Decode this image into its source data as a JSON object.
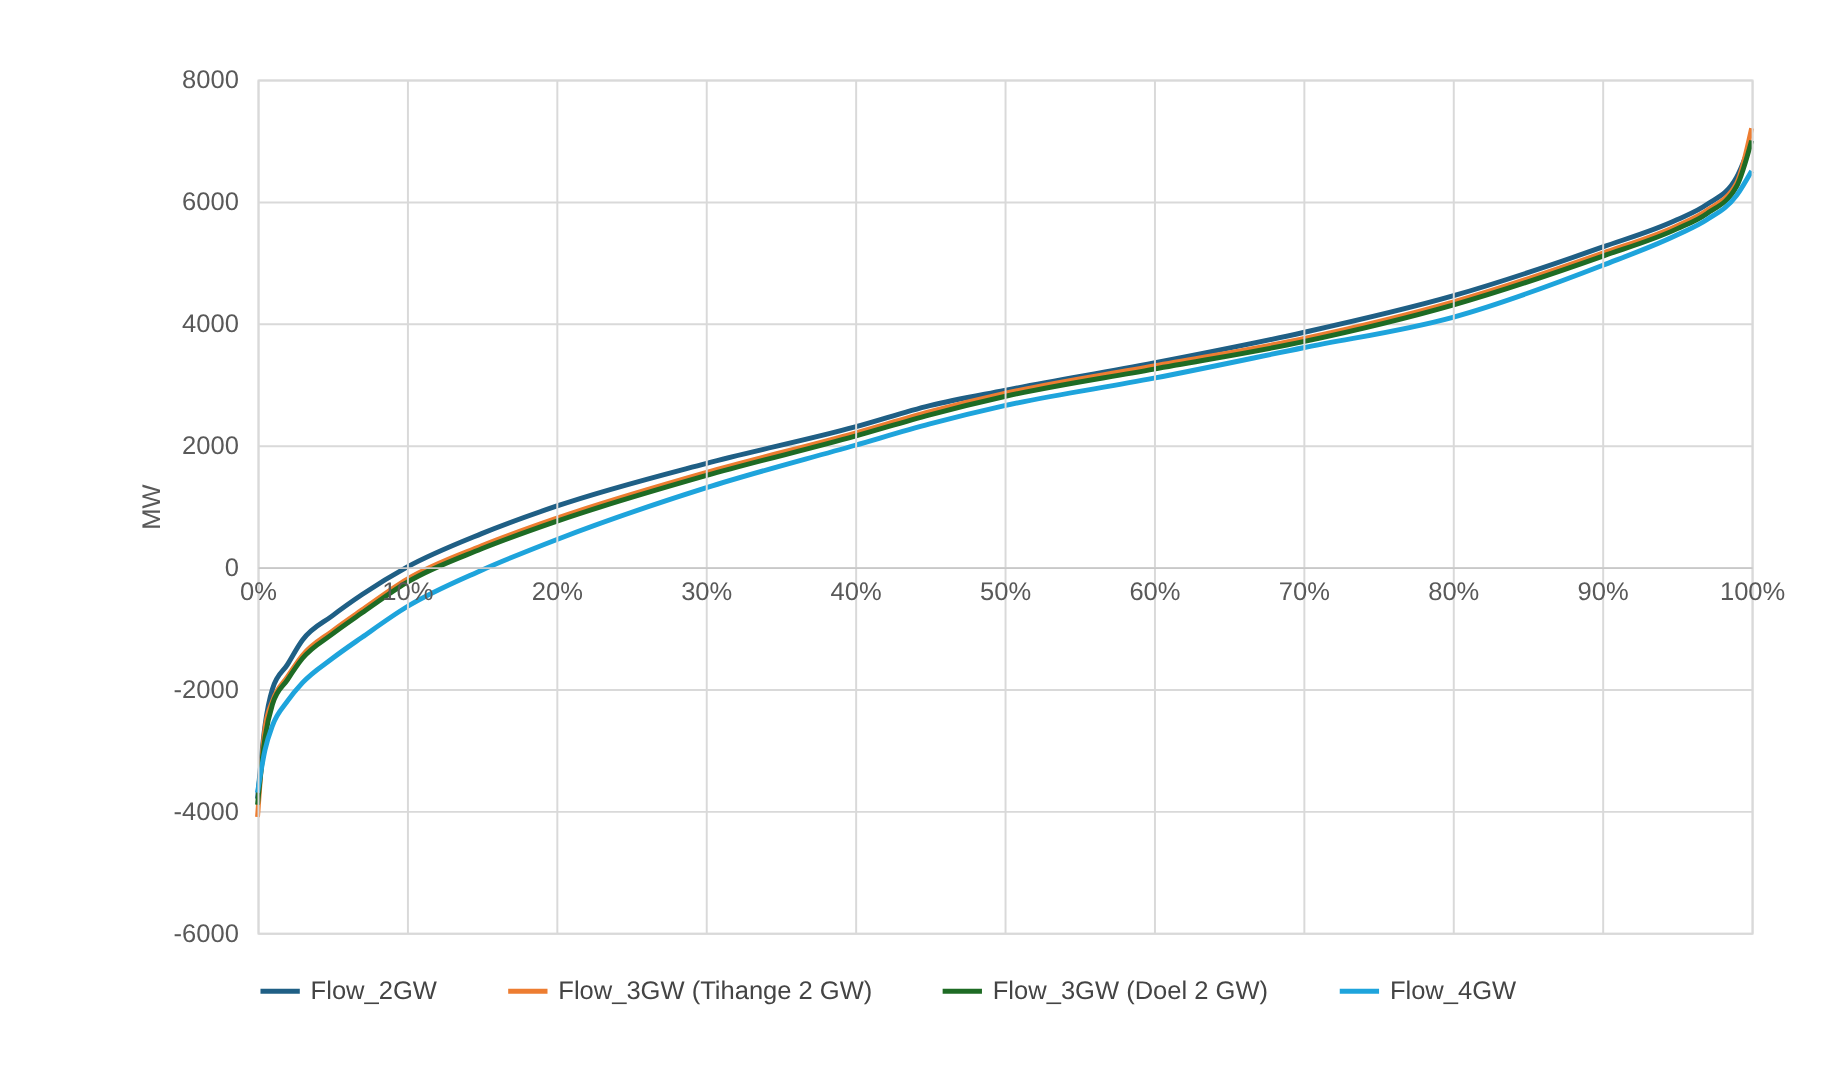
{
  "chart_data": {
    "type": "line",
    "ylabel": "MW",
    "x": [
      0,
      0.005,
      0.01,
      0.02,
      0.03,
      0.05,
      0.07,
      0.1,
      0.15,
      0.2,
      0.3,
      0.4,
      0.45,
      0.5,
      0.6,
      0.7,
      0.8,
      0.9,
      0.95,
      0.97,
      0.99,
      1.0
    ],
    "series": [
      {
        "name": "Flow_2GW",
        "color": "#1f5f85",
        "values": [
          -3800,
          -2600,
          -2000,
          -1600,
          -1200,
          -800,
          -450,
          0,
          550,
          1000,
          1700,
          2300,
          2650,
          2900,
          3350,
          3850,
          4450,
          5250,
          5700,
          5950,
          6400,
          7000
        ]
      },
      {
        "name": "Flow_3GW (Tihange 2 GW)",
        "color": "#ed7d31",
        "values": [
          -4100,
          -2650,
          -2200,
          -1800,
          -1450,
          -1050,
          -700,
          -200,
          350,
          800,
          1550,
          2200,
          2550,
          2850,
          3300,
          3750,
          4350,
          5150,
          5600,
          5850,
          6300,
          7200
        ]
      },
      {
        "name": "Flow_3GW (Doel 2 GW)",
        "color": "#1e6b24",
        "values": [
          -3900,
          -2800,
          -2250,
          -1850,
          -1500,
          -1100,
          -750,
          -250,
          300,
          750,
          1500,
          2150,
          2500,
          2800,
          3250,
          3700,
          4300,
          5100,
          5550,
          5800,
          6250,
          7000
        ]
      },
      {
        "name": "Flow_4GW",
        "color": "#1ea4dc",
        "values": [
          -3700,
          -3000,
          -2600,
          -2200,
          -1900,
          -1500,
          -1150,
          -650,
          -50,
          450,
          1300,
          2000,
          2350,
          2650,
          3100,
          3600,
          4100,
          4950,
          5450,
          5700,
          6100,
          6500
        ]
      }
    ],
    "xlim": [
      0,
      1
    ],
    "xticks": [
      {
        "value": 0,
        "label": "0%"
      },
      {
        "value": 0.1,
        "label": "10%"
      },
      {
        "value": 0.2,
        "label": "20%"
      },
      {
        "value": 0.3,
        "label": "30%"
      },
      {
        "value": 0.4,
        "label": "40%"
      },
      {
        "value": 0.5,
        "label": "50%"
      },
      {
        "value": 0.6,
        "label": "60%"
      },
      {
        "value": 0.7,
        "label": "70%"
      },
      {
        "value": 0.8,
        "label": "80%"
      },
      {
        "value": 0.9,
        "label": "90%"
      },
      {
        "value": 1,
        "label": "100%"
      }
    ],
    "ylim": [
      -6000,
      8000
    ],
    "yticks": [
      -6000,
      -4000,
      -2000,
      0,
      2000,
      4000,
      6000,
      8000
    ],
    "grid": true,
    "legend": "bottom",
    "marker": "none",
    "line_style": "solid"
  }
}
